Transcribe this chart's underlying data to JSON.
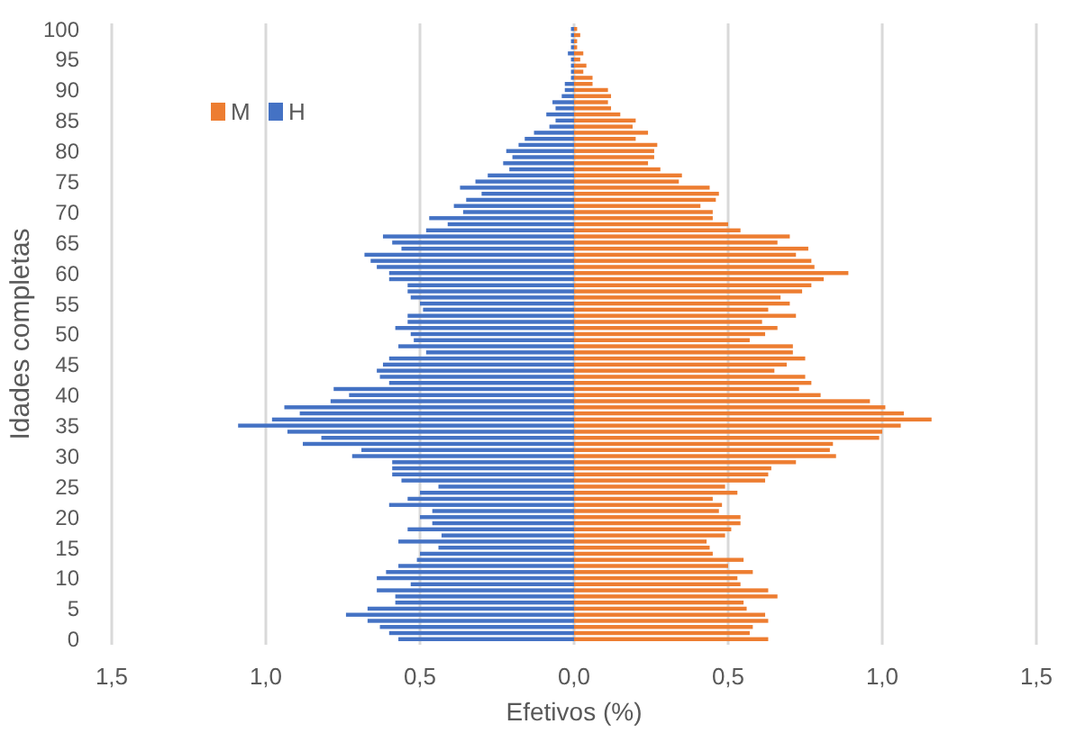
{
  "chart_data": {
    "type": "bar",
    "orientation": "horizontal",
    "xlabel": "Efetivos (%)",
    "ylabel": "Idades completas",
    "categories": [
      "100",
      null,
      null,
      null,
      null,
      "95",
      null,
      null,
      null,
      null,
      "90",
      null,
      null,
      null,
      null,
      "85",
      null,
      null,
      null,
      null,
      "80",
      null,
      null,
      null,
      null,
      "75",
      null,
      null,
      null,
      null,
      "70",
      null,
      null,
      null,
      null,
      "65",
      null,
      null,
      null,
      null,
      "60",
      null,
      null,
      null,
      null,
      "55",
      null,
      null,
      null,
      null,
      "50",
      null,
      null,
      null,
      null,
      "45",
      null,
      null,
      null,
      null,
      "40",
      null,
      null,
      null,
      null,
      "35",
      null,
      null,
      null,
      null,
      "30",
      null,
      null,
      null,
      null,
      "25",
      null,
      null,
      null,
      null,
      "20",
      null,
      null,
      null,
      null,
      "15",
      null,
      null,
      null,
      null,
      "10",
      null,
      null,
      null,
      null,
      "5",
      null,
      null,
      null,
      null,
      "0"
    ],
    "series": [
      {
        "name": "M",
        "color": "#ed7d31",
        "values": [
          0.01,
          0.02,
          0.01,
          0.01,
          0.03,
          0.02,
          0.04,
          0.03,
          0.06,
          0.06,
          0.11,
          0.12,
          0.11,
          0.12,
          0.15,
          0.2,
          0.19,
          0.24,
          0.2,
          0.27,
          0.26,
          0.26,
          0.24,
          0.28,
          0.35,
          0.34,
          0.44,
          0.47,
          0.46,
          0.41,
          0.45,
          0.45,
          0.5,
          0.54,
          0.7,
          0.66,
          0.76,
          0.72,
          0.77,
          0.78,
          0.89,
          0.81,
          0.77,
          0.74,
          0.67,
          0.7,
          0.63,
          0.72,
          0.61,
          0.66,
          0.62,
          0.57,
          0.71,
          0.71,
          0.75,
          0.69,
          0.65,
          0.75,
          0.77,
          0.73,
          0.8,
          0.96,
          1.01,
          1.07,
          1.16,
          1.06,
          1.0,
          0.99,
          0.84,
          0.83,
          0.85,
          0.72,
          0.64,
          0.63,
          0.62,
          0.49,
          0.53,
          0.45,
          0.48,
          0.47,
          0.54,
          0.54,
          0.51,
          0.49,
          0.43,
          0.44,
          0.45,
          0.55,
          0.5,
          0.58,
          0.53,
          0.54,
          0.63,
          0.66,
          0.55,
          0.56,
          0.62,
          0.63,
          0.58,
          0.57,
          0.63
        ]
      },
      {
        "name": "H",
        "color": "#4472c4",
        "values": [
          -0.01,
          -0.01,
          -0.01,
          -0.01,
          -0.02,
          -0.01,
          -0.01,
          -0.01,
          -0.01,
          -0.03,
          -0.03,
          -0.04,
          -0.07,
          -0.06,
          -0.09,
          -0.06,
          -0.08,
          -0.13,
          -0.16,
          -0.18,
          -0.22,
          -0.2,
          -0.23,
          -0.21,
          -0.28,
          -0.32,
          -0.37,
          -0.3,
          -0.35,
          -0.39,
          -0.36,
          -0.47,
          -0.41,
          -0.48,
          -0.62,
          -0.59,
          -0.56,
          -0.68,
          -0.66,
          -0.64,
          -0.6,
          -0.6,
          -0.54,
          -0.54,
          -0.53,
          -0.5,
          -0.49,
          -0.54,
          -0.54,
          -0.58,
          -0.53,
          -0.52,
          -0.57,
          -0.48,
          -0.6,
          -0.62,
          -0.64,
          -0.63,
          -0.6,
          -0.78,
          -0.73,
          -0.79,
          -0.94,
          -0.89,
          -0.98,
          -1.09,
          -0.93,
          -0.82,
          -0.88,
          -0.69,
          -0.72,
          -0.59,
          -0.59,
          -0.59,
          -0.56,
          -0.44,
          -0.5,
          -0.54,
          -0.6,
          -0.46,
          -0.5,
          -0.46,
          -0.54,
          -0.43,
          -0.57,
          -0.44,
          -0.5,
          -0.51,
          -0.57,
          -0.61,
          -0.64,
          -0.53,
          -0.64,
          -0.58,
          -0.58,
          -0.67,
          -0.74,
          -0.67,
          -0.63,
          -0.6,
          -0.57
        ]
      }
    ],
    "xlim": [
      -1.5,
      1.5
    ],
    "xticks": [
      {
        "value": -1.5,
        "label": "1,5"
      },
      {
        "value": -1,
        "label": "1,0"
      },
      {
        "value": -0.5,
        "label": "0,5"
      },
      {
        "value": 0,
        "label": "0,0"
      },
      {
        "value": 0.5,
        "label": "0,5"
      },
      {
        "value": 1,
        "label": "1,0"
      },
      {
        "value": 1.5,
        "label": "1,5"
      }
    ],
    "grid": "x",
    "legend": "top left",
    "stacked": true
  }
}
